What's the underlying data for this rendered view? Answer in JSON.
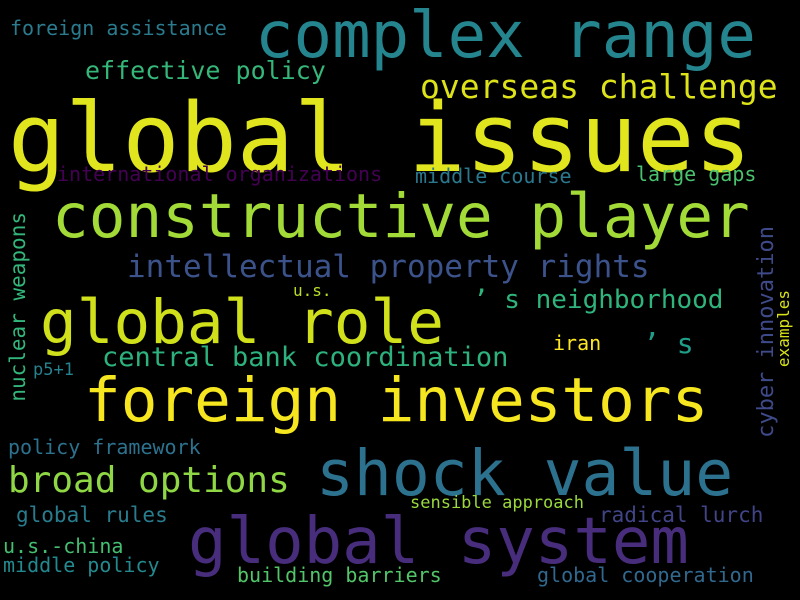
{
  "words": [
    {
      "text": "foreign assistance",
      "color": "#2b7b8e"
    },
    {
      "text": "complex range",
      "color": "#25858e"
    },
    {
      "text": "effective policy",
      "color": "#35b779"
    },
    {
      "text": "overseas challenge",
      "color": "#dde318"
    },
    {
      "text": "global issues",
      "color": "#e0e51e"
    },
    {
      "text": "international organizations",
      "color": "#440154"
    },
    {
      "text": "middle course",
      "color": "#2a788e"
    },
    {
      "text": "large gaps",
      "color": "#4ac16d"
    },
    {
      "text": "constructive player",
      "color": "#a2da37"
    },
    {
      "text": "intellectual property rights",
      "color": "#3b528b"
    },
    {
      "text": "nuclear weapons",
      "color": "#32b67a"
    },
    {
      "text": "cyber innovation",
      "color": "#3e4a89"
    },
    {
      "text": "examples",
      "color": "#d8e219"
    },
    {
      "text": "u.s.",
      "color": "#b8de29"
    },
    {
      "text": "’ s neighborhood",
      "color": "#2fb47c"
    },
    {
      "text": "global role",
      "color": "#d0e11c"
    },
    {
      "text": "central bank coordination",
      "color": "#2db27d"
    },
    {
      "text": "iran",
      "color": "#fde725"
    },
    {
      "text": "’ s",
      "color": "#1f9e89"
    },
    {
      "text": "p5+1",
      "color": "#26828e"
    },
    {
      "text": "foreign investors",
      "color": "#f6e620"
    },
    {
      "text": "policy framework",
      "color": "#2c728e"
    },
    {
      "text": "shock value",
      "color": "#2c718e"
    },
    {
      "text": "broad options",
      "color": "#8fd744"
    },
    {
      "text": "sensible approach",
      "color": "#9bd93c"
    },
    {
      "text": "global rules",
      "color": "#287c8e"
    },
    {
      "text": "radical lurch",
      "color": "#414487"
    },
    {
      "text": "global system",
      "color": "#472d7b"
    },
    {
      "text": "u.s.-china",
      "color": "#44bf70"
    },
    {
      "text": "middle policy",
      "color": "#23898e"
    },
    {
      "text": "building barriers",
      "color": "#52c569"
    },
    {
      "text": "global cooperation",
      "color": "#31688e"
    }
  ]
}
